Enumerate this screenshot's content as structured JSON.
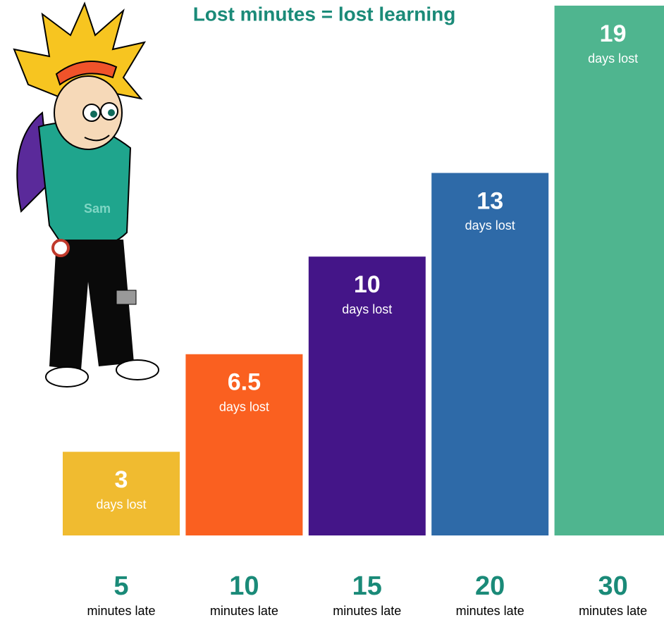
{
  "chart_data": {
    "type": "bar",
    "title": "Lost minutes = lost learning",
    "categories": [
      "5",
      "10",
      "15",
      "20",
      "30"
    ],
    "category_unit": "minutes late",
    "values": [
      3,
      6.5,
      10,
      13,
      19
    ],
    "value_unit": "days lost",
    "colors": [
      "#f0bb30",
      "#fa6020",
      "#441588",
      "#2e6aa8",
      "#4fb58f"
    ],
    "ylim": [
      0,
      19
    ],
    "character_label": "Sam"
  }
}
